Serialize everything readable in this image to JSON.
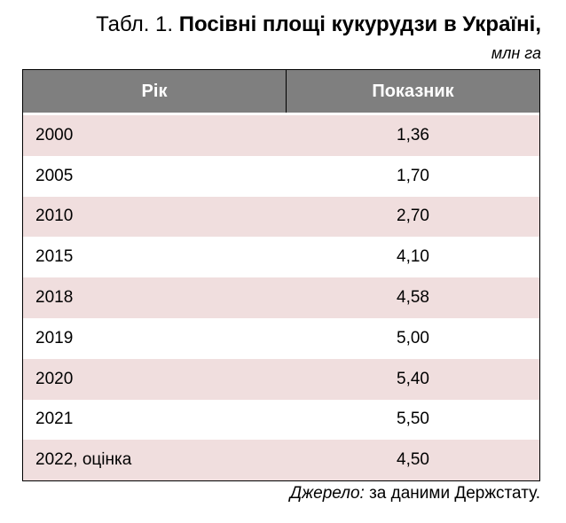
{
  "header": {
    "label": "Табл. 1.",
    "title": "Посівні площі кукурудзи в Україні,",
    "unit": "млн га"
  },
  "table": {
    "columns": [
      "Рік",
      "Показник"
    ],
    "rows": [
      [
        "2000",
        "1,36"
      ],
      [
        "2005",
        "1,70"
      ],
      [
        "2010",
        "2,70"
      ],
      [
        "2015",
        "4,10"
      ],
      [
        "2018",
        "4,58"
      ],
      [
        "2019",
        "5,00"
      ],
      [
        "2020",
        "5,40"
      ],
      [
        "2021",
        "5,50"
      ],
      [
        "2022, оцінка",
        "4,50"
      ]
    ]
  },
  "source": {
    "label": "Джерело:",
    "text": "за даними Держстату."
  }
}
